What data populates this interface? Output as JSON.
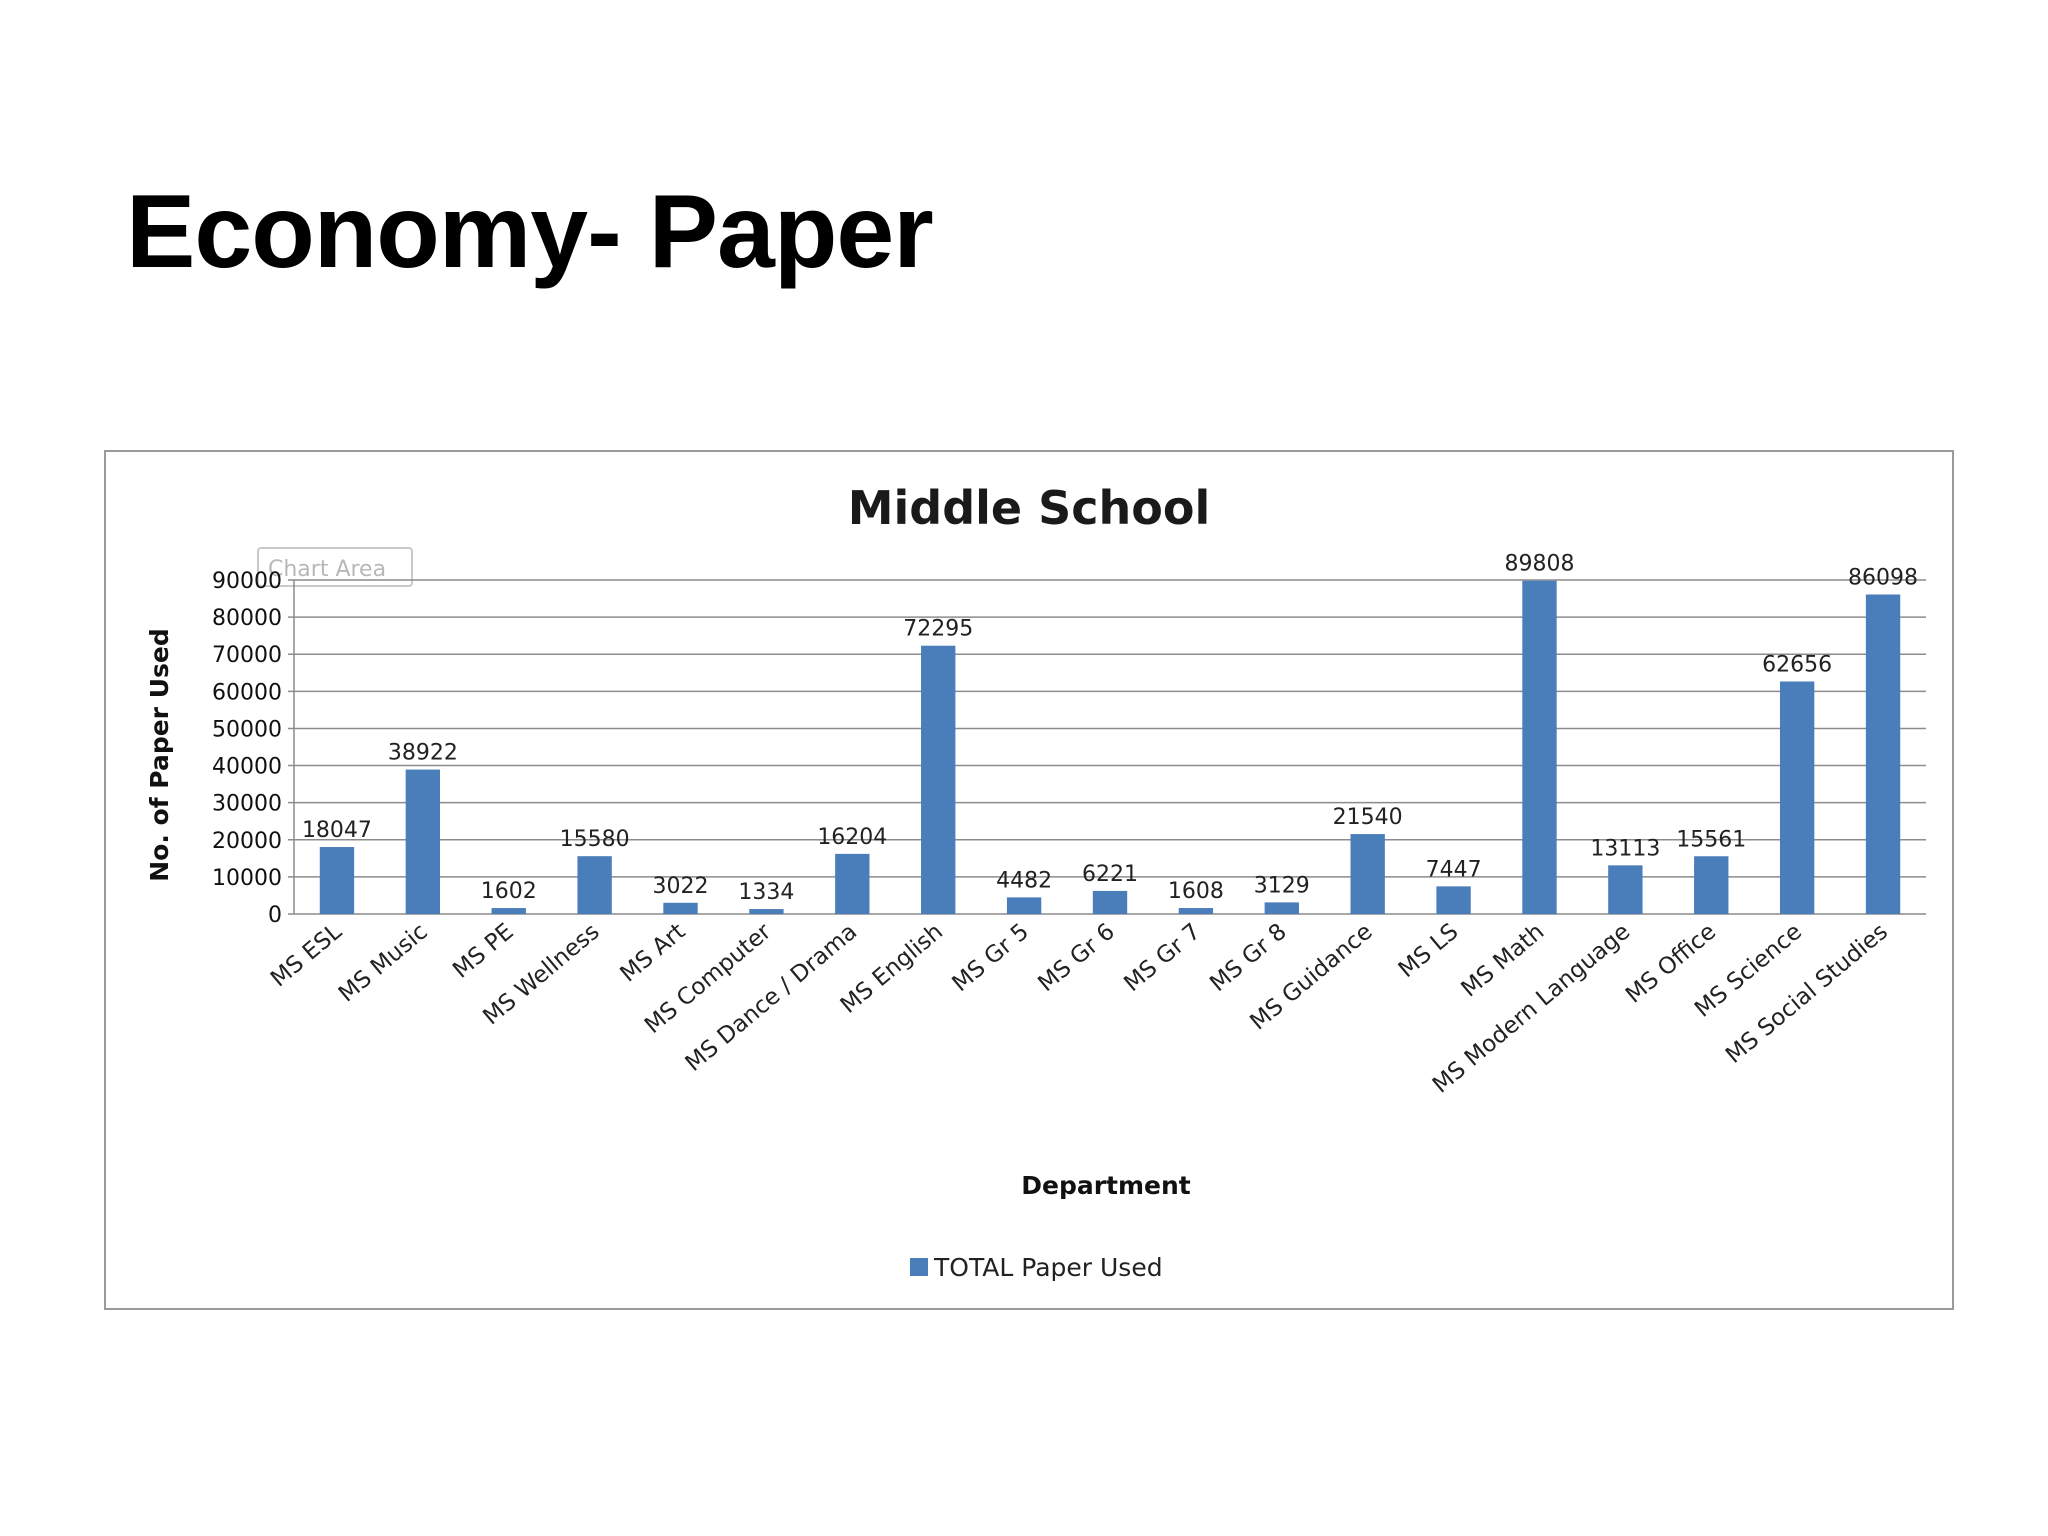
{
  "slide": {
    "title": "Economy- Paper"
  },
  "tooltip": {
    "label": "Chart Area"
  },
  "chart_data": {
    "type": "bar",
    "title": "Middle School",
    "xlabel": "Department",
    "ylabel": "No. of Paper Used",
    "ylim": [
      0,
      90000
    ],
    "yticks": [
      0,
      10000,
      20000,
      30000,
      40000,
      50000,
      60000,
      70000,
      80000,
      90000
    ],
    "grid": true,
    "legend_position": "bottom",
    "categories": [
      "MS ESL",
      "MS Music",
      "MS PE",
      "MS Wellness",
      "MS Art",
      "MS Computer",
      "MS Dance / Drama",
      "MS English",
      "MS Gr 5",
      "MS Gr 6",
      "MS Gr 7",
      "MS Gr 8",
      "MS Guidance",
      "MS LS",
      "MS Math",
      "MS Modern Language",
      "MS Office",
      "MS Science",
      "MS Social Studies"
    ],
    "series": [
      {
        "name": "TOTAL Paper Used",
        "color": "#4a7ebb",
        "values": [
          18047,
          38922,
          1602,
          15580,
          3022,
          1334,
          16204,
          72295,
          4482,
          6221,
          1608,
          3129,
          21540,
          7447,
          89808,
          13113,
          15561,
          62656,
          86098
        ]
      }
    ]
  }
}
